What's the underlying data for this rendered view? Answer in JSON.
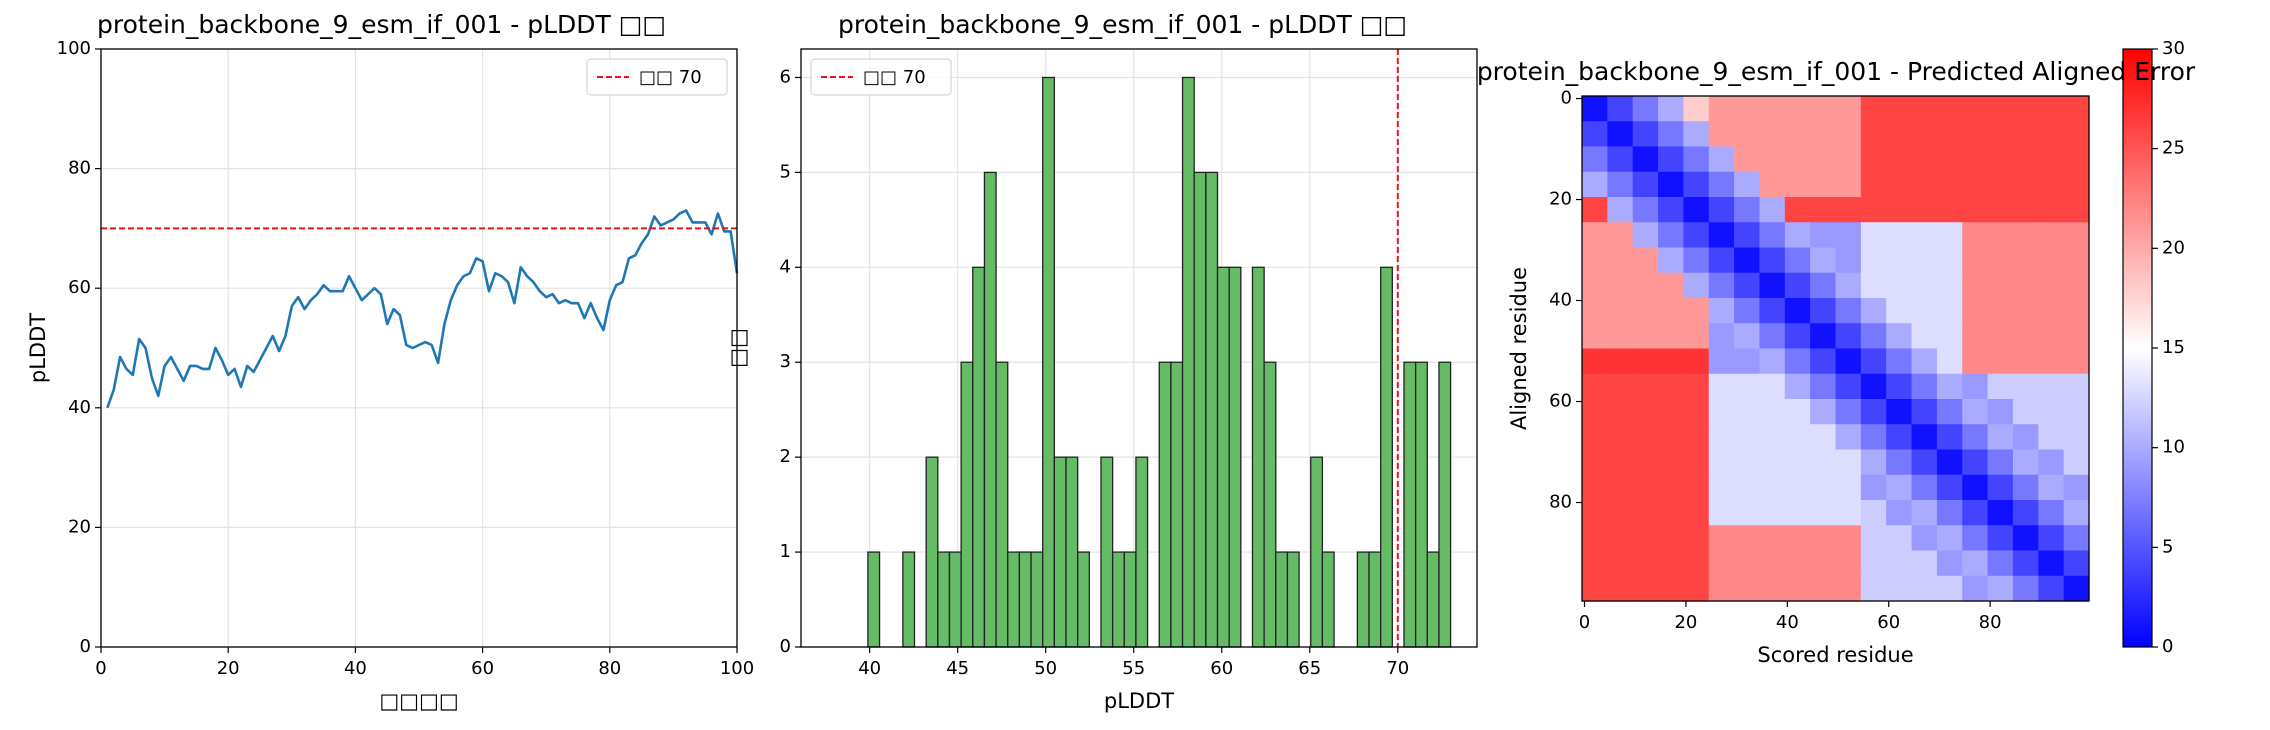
{
  "chart_data": [
    {
      "type": "line",
      "title": "protein_backbone_9_esm_if_001 - pLDDT □□",
      "xlabel": "□□□□",
      "ylabel": "pLDDT",
      "x": [
        1,
        2,
        3,
        4,
        5,
        6,
        7,
        8,
        9,
        10,
        11,
        12,
        13,
        14,
        15,
        16,
        17,
        18,
        19,
        20,
        21,
        22,
        23,
        24,
        25,
        26,
        27,
        28,
        29,
        30,
        31,
        32,
        33,
        34,
        35,
        36,
        37,
        38,
        39,
        40,
        41,
        42,
        43,
        44,
        45,
        46,
        47,
        48,
        49,
        50,
        51,
        52,
        53,
        54,
        55,
        56,
        57,
        58,
        59,
        60,
        61,
        62,
        63,
        64,
        65,
        66,
        67,
        68,
        69,
        70,
        71,
        72,
        73,
        74,
        75,
        76,
        77,
        78,
        79,
        80,
        81,
        82,
        83,
        84,
        85,
        86,
        87,
        88,
        89,
        90,
        91,
        92,
        93,
        94,
        95,
        96,
        97,
        98,
        99,
        100
      ],
      "series": [
        {
          "color": "#1f77b4",
          "values": [
            40,
            43,
            48.5,
            46.5,
            45.5,
            51.5,
            50,
            45,
            42,
            47,
            48.5,
            46.5,
            44.5,
            47,
            47,
            46.5,
            46.5,
            50,
            48,
            45.5,
            46.5,
            43.5,
            47,
            46,
            48,
            50,
            52,
            49.5,
            52,
            57,
            58.5,
            56.5,
            58,
            59,
            60.5,
            59.5,
            59.5,
            59.5,
            62,
            60,
            58,
            59,
            60,
            59,
            54,
            56.5,
            55.5,
            50.5,
            50,
            50.5,
            51,
            50.5,
            47.5,
            54,
            58,
            60.5,
            62,
            62.5,
            65,
            64.5,
            59.5,
            62.5,
            62,
            61,
            57.5,
            63.5,
            62,
            61,
            59.5,
            58.5,
            59,
            57.5,
            58,
            57.5,
            57.5,
            55,
            57.5,
            55,
            53,
            58,
            60.5,
            61,
            65,
            65.5,
            67.5,
            69,
            72,
            70.5,
            71,
            71.5,
            72.5,
            73,
            71,
            71,
            71,
            69,
            72.5,
            69.5,
            69.5,
            62.5
          ]
        }
      ],
      "threshold": {
        "value": 70,
        "label": "□□ 70",
        "color": "#e8141c"
      },
      "legend": "upper right",
      "grid": true,
      "xlim": [
        0,
        100
      ],
      "xticks": [
        0,
        20,
        40,
        60,
        80,
        100
      ],
      "ylim": [
        0,
        100
      ],
      "yticks": [
        0,
        20,
        40,
        60,
        80,
        100
      ]
    },
    {
      "type": "histogram",
      "title": "protein_backbone_9_esm_if_001 - pLDDT □□",
      "xlabel": "pLDDT",
      "ylabel": "□□",
      "bins": [
        39.9,
        40.562,
        41.224,
        41.886,
        42.548,
        43.21,
        43.872,
        44.534,
        45.196,
        45.858,
        46.52,
        47.182,
        47.844,
        48.506,
        49.168,
        49.83,
        50.492,
        51.154,
        51.816,
        52.478,
        53.14,
        53.802,
        54.464,
        55.126,
        55.788,
        56.45,
        57.112,
        57.774,
        58.436,
        59.098,
        59.76,
        60.422,
        61.084,
        61.746,
        62.408,
        63.07,
        63.732,
        64.394,
        65.056,
        65.718,
        66.38,
        67.042,
        67.704,
        68.366,
        69.028,
        69.69,
        70.352,
        71.014,
        71.676,
        72.338,
        73.0
      ],
      "values": [
        1,
        0,
        0,
        1,
        0,
        2,
        1,
        1,
        3,
        4,
        5,
        3,
        1,
        1,
        1,
        6,
        2,
        2,
        1,
        0,
        2,
        1,
        1,
        2,
        0,
        3,
        3,
        6,
        5,
        5,
        4,
        4,
        0,
        4,
        3,
        1,
        1,
        0,
        2,
        1,
        0,
        0,
        1,
        1,
        4,
        0,
        3,
        3,
        1,
        3
      ],
      "color": "#66bb66",
      "edgecolor": "#222222",
      "threshold": {
        "value": 70,
        "label": "□□ 70",
        "color": "#e8141c"
      },
      "legend": "upper left",
      "grid": true,
      "xlim": [
        36.1,
        74.5
      ],
      "xticks": [
        40,
        45,
        50,
        55,
        60,
        65,
        70
      ],
      "ylim": [
        0,
        6.3
      ],
      "yticks": [
        0,
        1,
        2,
        3,
        4,
        5,
        6
      ]
    },
    {
      "type": "heatmap",
      "title": "protein_backbone_9_esm_if_001 - Predicted Aligned Error",
      "xlabel": "Scored residue",
      "ylabel": "Aligned residue",
      "colormap": "bwr",
      "zlim": [
        0,
        30
      ],
      "zticks": [
        0,
        5,
        10,
        15,
        20,
        25,
        30
      ],
      "xlim": [
        -0.5,
        99.5
      ],
      "xticks": [
        0,
        20,
        40,
        60,
        80
      ],
      "ylim": [
        99.5,
        -0.5
      ],
      "yticks": [
        0,
        20,
        40,
        60,
        80
      ],
      "z": [
        [
          1,
          4,
          7,
          10,
          18,
          21,
          21,
          21,
          21,
          21,
          21,
          26,
          26,
          26,
          26,
          26,
          26,
          26,
          26,
          26
        ],
        [
          4,
          1,
          4,
          7,
          10,
          21,
          21,
          21,
          21,
          21,
          21,
          26,
          26,
          26,
          26,
          26,
          26,
          26,
          26,
          26
        ],
        [
          7,
          4,
          1,
          4,
          7,
          10,
          21,
          21,
          21,
          21,
          21,
          26,
          26,
          26,
          26,
          26,
          26,
          26,
          26,
          26
        ],
        [
          10,
          7,
          4,
          1,
          4,
          7,
          10,
          21,
          21,
          21,
          21,
          26,
          26,
          26,
          26,
          26,
          26,
          26,
          26,
          26
        ],
        [
          26,
          10,
          7,
          4,
          1,
          4,
          7,
          10,
          26,
          26,
          26,
          26,
          26,
          26,
          26,
          26,
          26,
          26,
          26,
          26
        ],
        [
          21,
          21,
          10,
          7,
          4,
          1,
          4,
          7,
          10,
          9,
          9,
          13,
          13,
          13,
          13,
          22,
          22,
          22,
          22,
          22
        ],
        [
          21,
          21,
          21,
          10,
          7,
          4,
          1,
          4,
          7,
          10,
          9,
          13,
          13,
          13,
          13,
          22,
          22,
          22,
          22,
          22
        ],
        [
          21,
          21,
          21,
          21,
          10,
          7,
          4,
          1,
          4,
          7,
          10,
          13,
          13,
          13,
          13,
          22,
          22,
          22,
          22,
          22
        ],
        [
          21,
          21,
          21,
          21,
          21,
          10,
          7,
          4,
          1,
          4,
          7,
          10,
          13,
          13,
          13,
          22,
          22,
          22,
          22,
          22
        ],
        [
          21,
          21,
          21,
          21,
          21,
          9,
          10,
          7,
          4,
          1,
          4,
          7,
          10,
          13,
          13,
          22,
          22,
          22,
          22,
          22
        ],
        [
          27,
          27,
          27,
          27,
          27,
          9,
          9,
          10,
          7,
          4,
          1,
          4,
          7,
          10,
          13,
          22,
          22,
          22,
          22,
          22
        ],
        [
          26,
          26,
          26,
          26,
          26,
          13,
          13,
          13,
          10,
          7,
          4,
          1,
          4,
          7,
          10,
          9,
          12,
          12,
          12,
          12
        ],
        [
          26,
          26,
          26,
          26,
          26,
          13,
          13,
          13,
          13,
          10,
          7,
          4,
          1,
          4,
          7,
          10,
          9,
          12,
          12,
          12
        ],
        [
          26,
          26,
          26,
          26,
          26,
          13,
          13,
          13,
          13,
          13,
          10,
          7,
          4,
          1,
          4,
          7,
          10,
          9,
          12,
          12
        ],
        [
          26,
          26,
          26,
          26,
          26,
          13,
          13,
          13,
          13,
          13,
          13,
          10,
          7,
          4,
          1,
          4,
          7,
          10,
          9,
          12
        ],
        [
          26,
          26,
          26,
          26,
          26,
          13,
          13,
          13,
          13,
          13,
          13,
          9,
          10,
          7,
          4,
          1,
          4,
          7,
          10,
          9
        ],
        [
          26,
          26,
          26,
          26,
          26,
          13,
          13,
          13,
          13,
          13,
          13,
          12,
          9,
          10,
          7,
          4,
          1,
          4,
          7,
          10
        ],
        [
          26,
          26,
          26,
          26,
          26,
          22,
          22,
          22,
          22,
          22,
          22,
          12,
          12,
          9,
          10,
          7,
          4,
          1,
          4,
          7
        ],
        [
          26,
          26,
          26,
          26,
          26,
          22,
          22,
          22,
          22,
          22,
          22,
          12,
          12,
          12,
          9,
          10,
          7,
          4,
          1,
          4
        ],
        [
          26,
          26,
          26,
          26,
          26,
          22,
          22,
          22,
          22,
          22,
          22,
          12,
          12,
          12,
          12,
          9,
          10,
          7,
          4,
          1
        ]
      ]
    }
  ]
}
